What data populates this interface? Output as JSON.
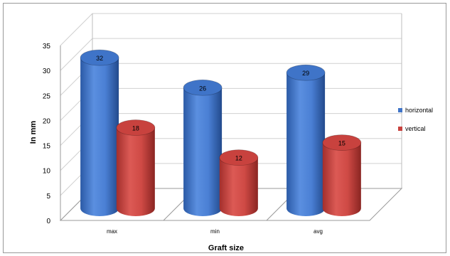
{
  "chart_data": {
    "type": "bar",
    "style": "3d-cylinder",
    "categories": [
      "max",
      "min",
      "avg"
    ],
    "series": [
      {
        "name": "horizontal",
        "values": [
          32,
          26,
          29
        ],
        "color": "#3f74c8"
      },
      {
        "name": "vertical",
        "values": [
          18,
          12,
          15
        ],
        "color": "#c8423e"
      }
    ],
    "xlabel": "Graft size",
    "ylabel": "In mm",
    "ylim": [
      0,
      35
    ],
    "yticks": [
      0,
      5,
      10,
      15,
      20,
      25,
      30,
      35
    ],
    "grid": true,
    "legend": "right"
  }
}
